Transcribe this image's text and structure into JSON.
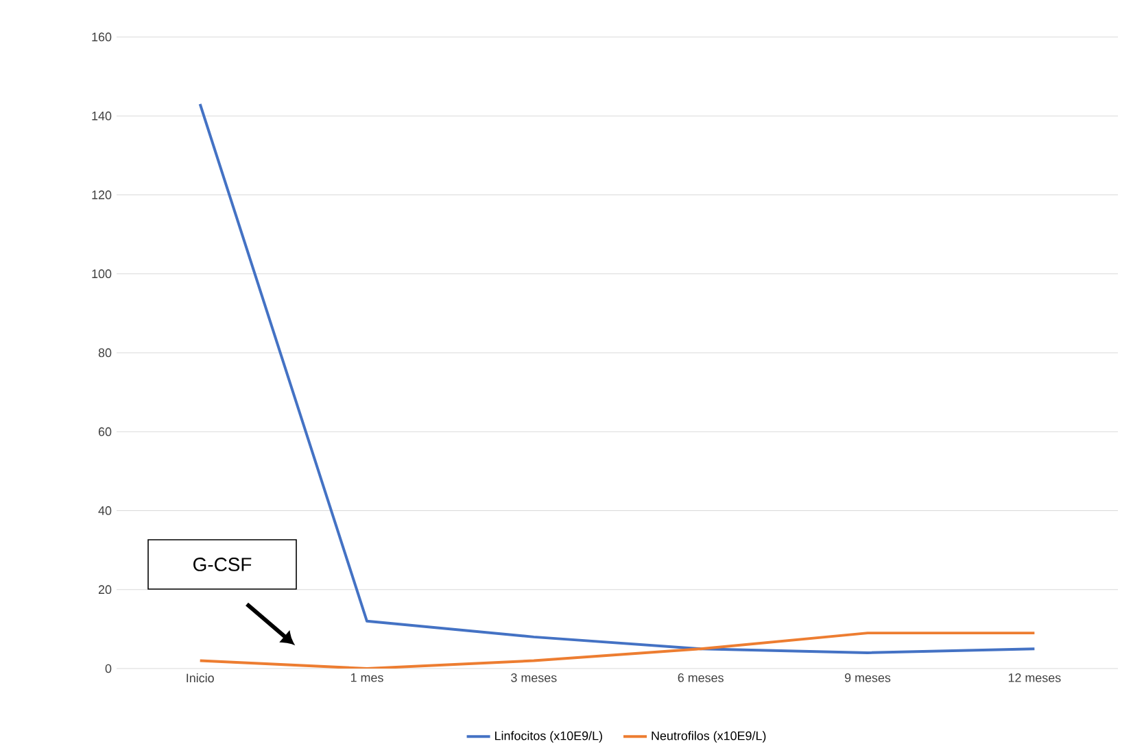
{
  "chart_data": {
    "type": "line",
    "categories": [
      "Inicio",
      "1 mes",
      "3 meses",
      "6 meses",
      "9 meses",
      "12 meses"
    ],
    "series": [
      {
        "name": "Linfocitos (x10E9/L)",
        "color": "#4472c4",
        "values": [
          143,
          12,
          8,
          5,
          4,
          5
        ]
      },
      {
        "name": "Neutrofilos (x10E9/L)",
        "color": "#ed7d31",
        "values": [
          2,
          0,
          2,
          5,
          9,
          9
        ]
      }
    ],
    "ylim": [
      0,
      160
    ],
    "yticks": [
      0,
      20,
      40,
      60,
      80,
      100,
      120,
      140,
      160
    ],
    "grid": "y",
    "legend": "bottom",
    "marker": "none",
    "line_style": "solid",
    "annotations": [
      "G-CSF"
    ]
  }
}
